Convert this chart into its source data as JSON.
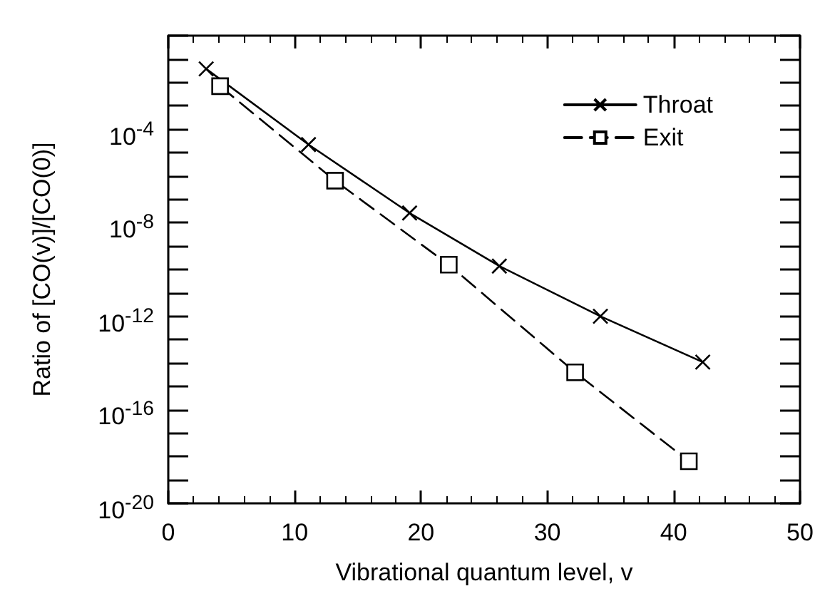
{
  "chart_data": {
    "type": "line",
    "xlabel": "Vibrational quantum level, v",
    "ylabel": "Ratio of [CO(v)]/[CO(0)]",
    "xlim": [
      0,
      50
    ],
    "xticks": [
      0,
      10,
      20,
      30,
      40,
      50
    ],
    "ylim": [
      1e-20,
      1
    ],
    "log": true,
    "yticks": [
      {
        "value": 1e-20,
        "label": "10$^{-20}$"
      },
      {
        "value": 1e-19,
        "label": null
      },
      {
        "value": 1e-18,
        "label": null
      },
      {
        "value": 1e-17,
        "label": null
      },
      {
        "value": 1e-16,
        "label": "10$^{-16}$"
      },
      {
        "value": 1e-15,
        "label": null
      },
      {
        "value": 1e-14,
        "label": null
      },
      {
        "value": 1e-13,
        "label": null
      },
      {
        "value": 1e-12,
        "label": "10$^{-12}$"
      },
      {
        "value": 1e-11,
        "label": null
      },
      {
        "value": 1e-10,
        "label": null
      },
      {
        "value": 1e-09,
        "label": null
      },
      {
        "value": 1e-08,
        "label": "10$^{-8}$"
      },
      {
        "value": 1e-07,
        "label": null
      },
      {
        "value": 1e-06,
        "label": null
      },
      {
        "value": 1e-05,
        "label": null
      },
      {
        "value": 0.0001,
        "label": "10$^{-4}$"
      },
      {
        "value": 0.001,
        "label": null
      },
      {
        "value": 0.01,
        "label": null
      },
      {
        "value": 0.1,
        "label": null
      },
      {
        "value": 1,
        "label": null
      }
    ],
    "grid": false,
    "legend": "top right",
    "series": [
      {
        "name": "Throat",
        "type": "line",
        "color": "#000000",
        "line_style": "solid",
        "marker": "cross",
        "x": [
          3,
          11.1,
          19.1,
          26.2,
          34.2,
          42.3
        ],
        "values": [
          0.038,
          2.2e-05,
          2.6e-08,
          1.4e-10,
          1e-12,
          1.1e-14
        ]
      },
      {
        "name": "Exit",
        "type": "line",
        "color": "#000000",
        "line_style": "dashed",
        "marker": "square",
        "x": [
          4.1,
          13.2,
          22.2,
          32.2,
          41.2
        ],
        "values": [
          0.0069,
          6.3e-07,
          1.6e-10,
          4e-15,
          6.3e-19
        ]
      }
    ]
  }
}
